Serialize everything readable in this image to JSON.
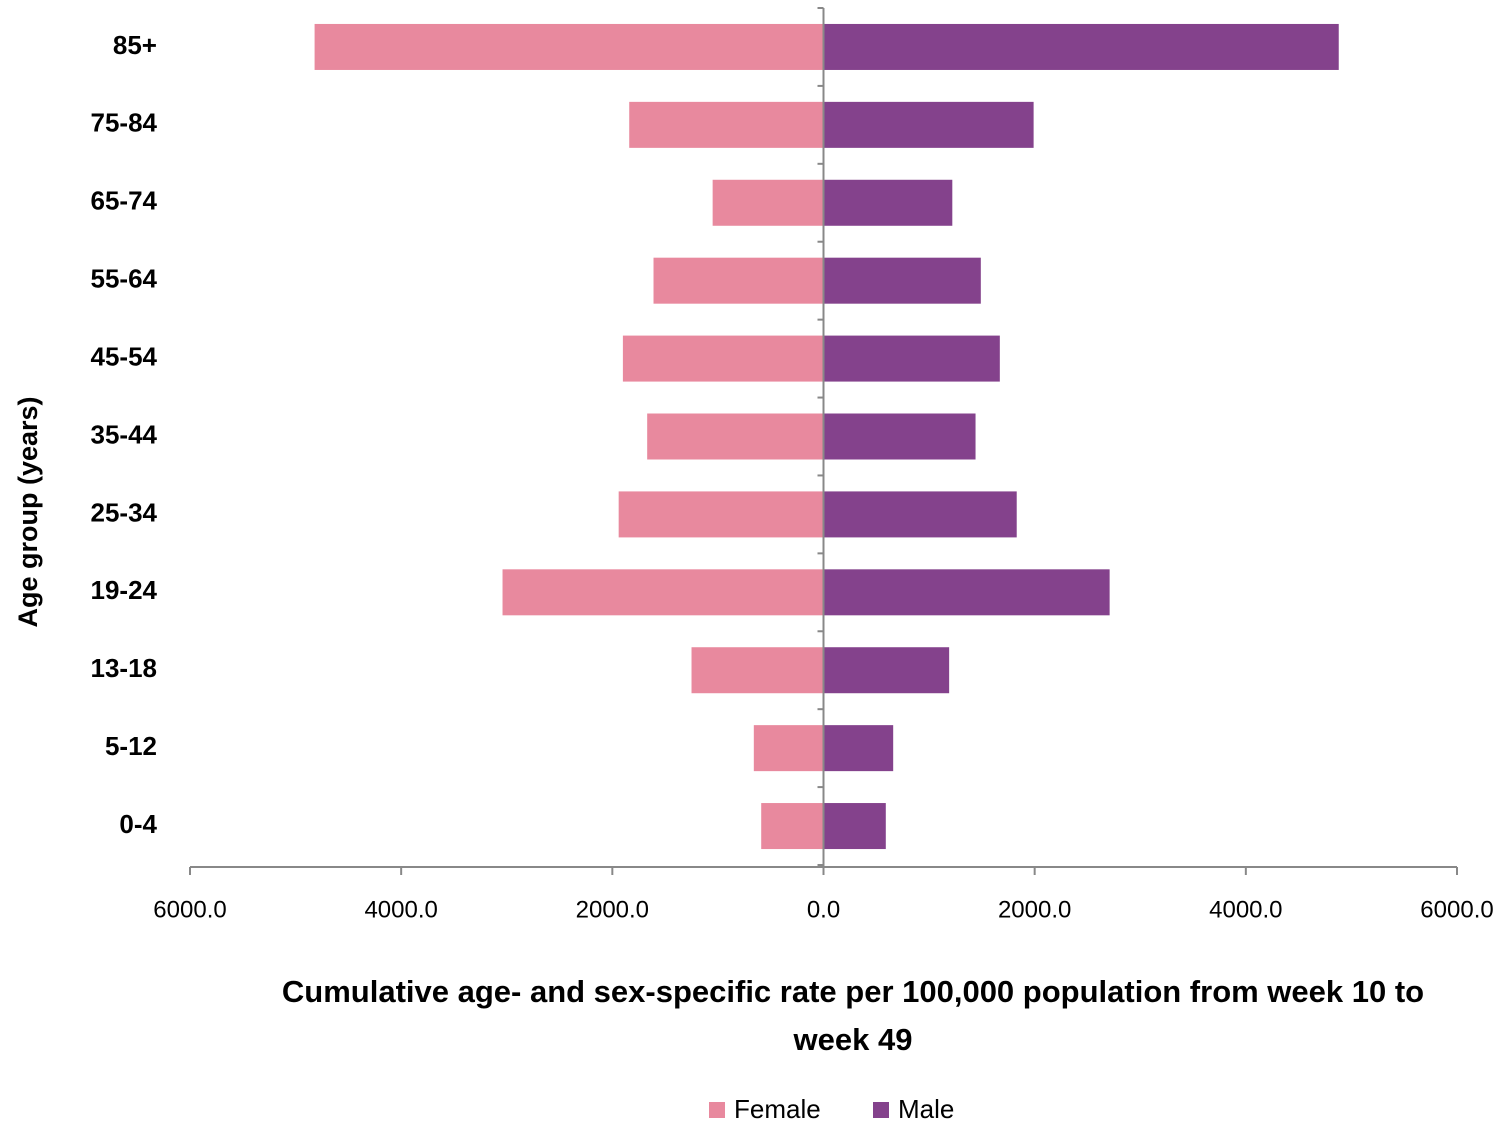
{
  "chart_data": {
    "type": "pyramid",
    "y_label": "Age group (years)",
    "x_label": "Cumulative age- and sex-specific rate per 100,000 population from week 10 to week 49",
    "categories": [
      "85+",
      "75-84",
      "65-74",
      "55-64",
      "45-54",
      "35-44",
      "25-34",
      "19-24",
      "13-18",
      "5-12",
      "0-4"
    ],
    "series": [
      {
        "name": "Female",
        "color": "#e8899e",
        "values": [
          -4820,
          -1840,
          -1050,
          -1610,
          -1900,
          -1670,
          -1940,
          -3040,
          -1250,
          -660,
          -590
        ]
      },
      {
        "name": "Male",
        "color": "#84428c",
        "values": [
          4880,
          1990,
          1220,
          1490,
          1670,
          1440,
          1830,
          2710,
          1190,
          660,
          590
        ]
      }
    ],
    "xlim": [
      -6000,
      6000
    ],
    "xticks": [
      {
        "value": -6000,
        "label": "6000.0"
      },
      {
        "value": -4000,
        "label": "4000.0"
      },
      {
        "value": -2000,
        "label": "2000.0"
      },
      {
        "value": 0,
        "label": "0.0"
      },
      {
        "value": 2000,
        "label": "2000.0"
      },
      {
        "value": 4000,
        "label": "4000.0"
      },
      {
        "value": 6000,
        "label": "6000.0"
      }
    ],
    "legend": "bottom"
  }
}
